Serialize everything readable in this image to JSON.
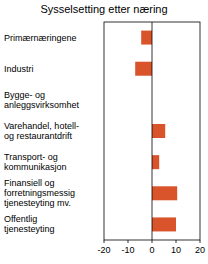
{
  "chart_data": {
    "type": "bar",
    "title": "Sysselsetting etter næring",
    "orientation": "horizontal",
    "categories": [
      "Primærnæringene",
      "Industri",
      "Bygge- og anleggsvirksomhet",
      "Varehandel, hotell- og restaurantdrift",
      "Transport- og kommunikasjon",
      "Finansiell og forretningsmessig tjenesteyting mv.",
      "Offentlig tjenesteyting"
    ],
    "values": [
      -4.5,
      -7,
      0,
      5.5,
      3,
      10.5,
      10
    ],
    "color": "#d9542b",
    "xlim": [
      -20,
      20
    ],
    "xticks": [
      -20,
      -10,
      0,
      10,
      20
    ],
    "grid": false
  }
}
